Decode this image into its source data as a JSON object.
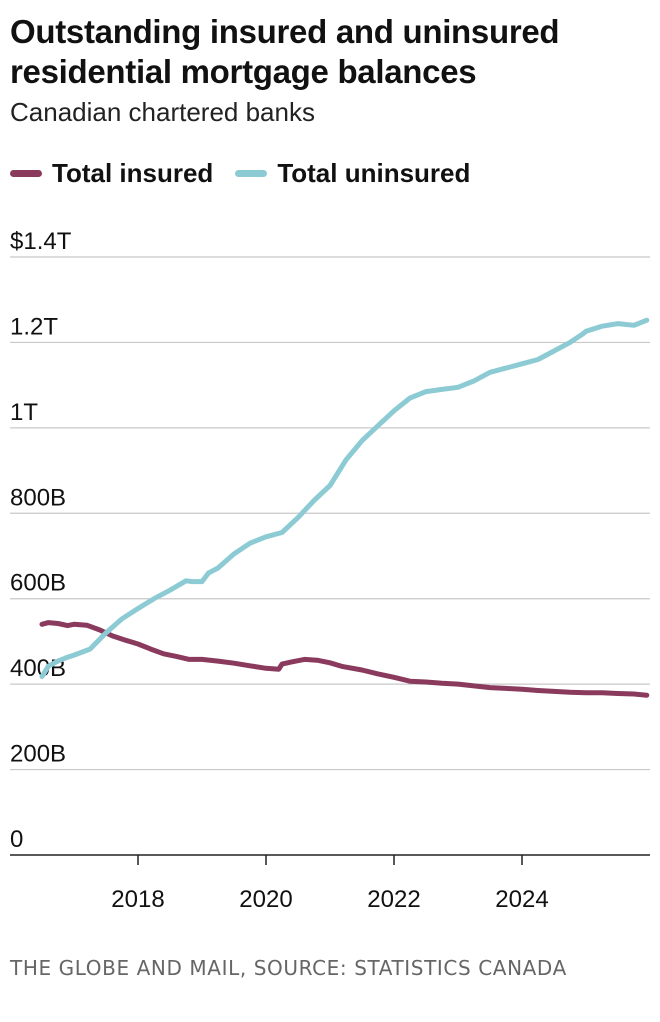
{
  "header": {
    "title": "Outstanding insured and uninsured residential mortgage balances",
    "subtitle": "Canadian chartered banks"
  },
  "footer": {
    "source": "THE GLOBE AND MAIL, SOURCE: STATISTICS CANADA"
  },
  "colors": {
    "insured": "#8a3a5c",
    "uninsured": "#8ccbd3",
    "grid": "#c8c8c8",
    "axis": "#222222"
  },
  "chart_data": {
    "type": "line",
    "title": "Outstanding insured and uninsured residential mortgage balances",
    "subtitle": "Canadian chartered banks",
    "xlabel": "",
    "ylabel": "",
    "xlim": [
      2016.2,
      2026.0
    ],
    "ylim": [
      0,
      1400
    ],
    "y_unit": "billions of dollars",
    "y_ticks": [
      0,
      200,
      400,
      600,
      800,
      1000,
      1200,
      1400
    ],
    "y_tick_labels": [
      "0",
      "200B",
      "400B",
      "600B",
      "800B",
      "1T",
      "1.2T",
      "$1.4T"
    ],
    "x_ticks": [
      2018,
      2020,
      2022,
      2024
    ],
    "x_tick_labels": [
      "2018",
      "2020",
      "2022",
      "2024"
    ],
    "grid": "horizontal",
    "legend_position": "top-left",
    "series": [
      {
        "name": "Total insured",
        "color": "#8a3a5c",
        "x": [
          2016.5,
          2016.6,
          2016.75,
          2016.9,
          2017.0,
          2017.2,
          2017.4,
          2017.6,
          2017.8,
          2018.0,
          2018.2,
          2018.4,
          2018.6,
          2018.8,
          2019.0,
          2019.25,
          2019.5,
          2019.75,
          2020.0,
          2020.2,
          2020.25,
          2020.4,
          2020.6,
          2020.8,
          2021.0,
          2021.2,
          2021.5,
          2021.75,
          2022.0,
          2022.25,
          2022.5,
          2022.75,
          2023.0,
          2023.25,
          2023.5,
          2023.75,
          2024.0,
          2024.25,
          2024.5,
          2024.75,
          2025.0,
          2025.25,
          2025.5,
          2025.75,
          2025.95
        ],
        "values": [
          540,
          544,
          542,
          537,
          540,
          538,
          527,
          513,
          503,
          494,
          482,
          471,
          465,
          458,
          458,
          454,
          449,
          443,
          437,
          435,
          447,
          452,
          458,
          456,
          450,
          441,
          433,
          424,
          416,
          407,
          405,
          402,
          400,
          396,
          392,
          390,
          388,
          385,
          383,
          381,
          380,
          380,
          378,
          377,
          374
        ]
      },
      {
        "name": "Total uninsured",
        "color": "#8ccbd3",
        "x": [
          2016.5,
          2016.6,
          2016.75,
          2016.9,
          2017.0,
          2017.25,
          2017.5,
          2017.75,
          2018.0,
          2018.25,
          2018.5,
          2018.75,
          2018.85,
          2019.0,
          2019.1,
          2019.25,
          2019.5,
          2019.75,
          2020.0,
          2020.25,
          2020.5,
          2020.75,
          2021.0,
          2021.25,
          2021.5,
          2021.75,
          2022.0,
          2022.25,
          2022.5,
          2022.75,
          2023.0,
          2023.25,
          2023.5,
          2023.75,
          2024.0,
          2024.25,
          2024.5,
          2024.75,
          2024.95,
          2025.0,
          2025.25,
          2025.5,
          2025.75,
          2025.95
        ],
        "values": [
          418,
          442,
          454,
          463,
          468,
          482,
          520,
          553,
          577,
          600,
          620,
          642,
          640,
          640,
          660,
          672,
          705,
          730,
          745,
          755,
          790,
          830,
          865,
          925,
          970,
          1005,
          1040,
          1070,
          1085,
          1090,
          1095,
          1110,
          1130,
          1140,
          1150,
          1160,
          1180,
          1200,
          1220,
          1226,
          1238,
          1244,
          1240,
          1252
        ]
      }
    ]
  }
}
